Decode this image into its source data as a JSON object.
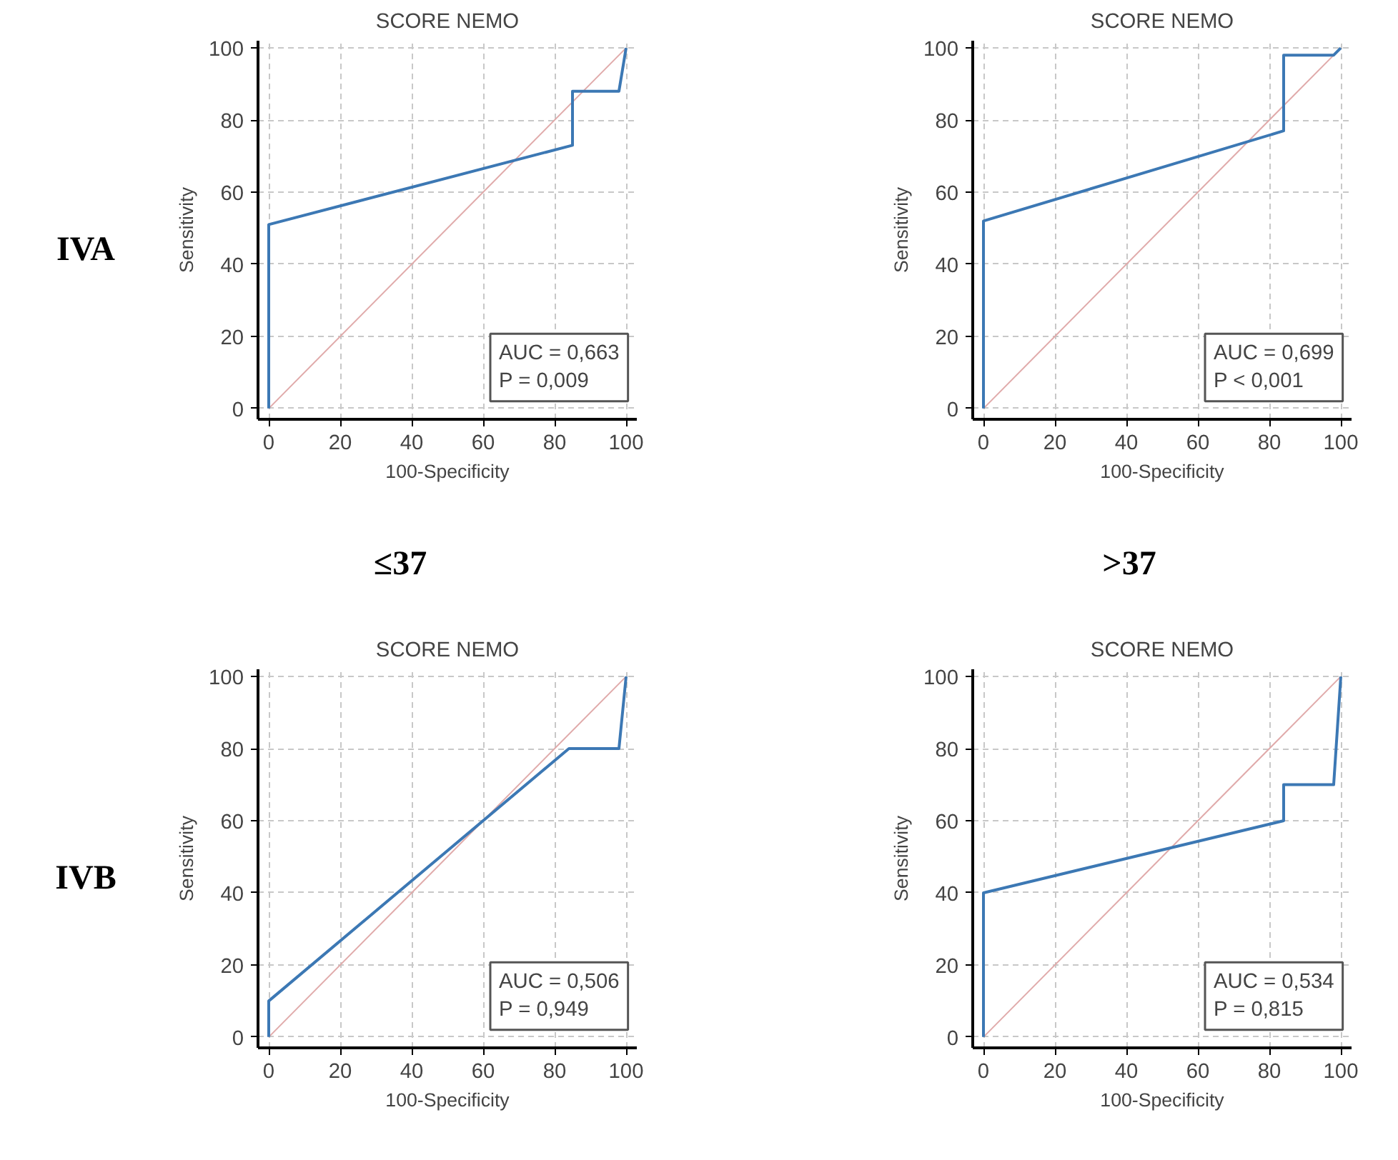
{
  "chart_data": [
    {
      "type": "line",
      "title": "SCORE NEMO",
      "xlabel": "100-Specificity",
      "ylabel": "Sensitivity",
      "xlim": [
        -3,
        103
      ],
      "ylim": [
        -3,
        102
      ],
      "xticks": [
        0,
        20,
        40,
        60,
        80,
        100
      ],
      "yticks": [
        0,
        20,
        40,
        60,
        80,
        100
      ],
      "grid": true,
      "series": [
        {
          "x": [
            0,
            100
          ],
          "values": [
            0,
            100
          ],
          "color": "#e0aaaa"
        },
        {
          "x": [
            0,
            0,
            85,
            85,
            98,
            100
          ],
          "values": [
            0,
            51,
            73,
            88,
            88,
            100
          ],
          "color": "#3c78b4"
        }
      ],
      "annotations": [
        "AUC = 0,663",
        "P = 0,009"
      ]
    },
    {
      "type": "line",
      "title": "SCORE NEMO",
      "xlabel": "100-Specificity",
      "ylabel": "Sensitivity",
      "xlim": [
        -3,
        103
      ],
      "ylim": [
        -3,
        102
      ],
      "xticks": [
        0,
        20,
        40,
        60,
        80,
        100
      ],
      "yticks": [
        0,
        20,
        40,
        60,
        80,
        100
      ],
      "grid": true,
      "series": [
        {
          "x": [
            0,
            100
          ],
          "values": [
            0,
            100
          ],
          "color": "#e0aaaa"
        },
        {
          "x": [
            0,
            0,
            84,
            84,
            98,
            100
          ],
          "values": [
            0,
            52,
            77,
            98,
            98,
            100
          ],
          "color": "#3c78b4"
        }
      ],
      "annotations": [
        "AUC = 0,699",
        "P < 0,001"
      ]
    },
    {
      "type": "line",
      "title": "SCORE NEMO",
      "xlabel": "100-Specificity",
      "ylabel": "Sensitivity",
      "xlim": [
        -3,
        103
      ],
      "ylim": [
        -3,
        102
      ],
      "xticks": [
        0,
        20,
        40,
        60,
        80,
        100
      ],
      "yticks": [
        0,
        20,
        40,
        60,
        80,
        100
      ],
      "grid": true,
      "series": [
        {
          "x": [
            0,
            100
          ],
          "values": [
            0,
            100
          ],
          "color": "#e0aaaa"
        },
        {
          "x": [
            0,
            0,
            84,
            98,
            100
          ],
          "values": [
            0,
            10,
            80,
            80,
            100
          ],
          "color": "#3c78b4"
        }
      ],
      "annotations": [
        "AUC = 0,506",
        "P = 0,949"
      ]
    },
    {
      "type": "line",
      "title": "SCORE NEMO",
      "xlabel": "100-Specificity",
      "ylabel": "Sensitivity",
      "xlim": [
        -3,
        103
      ],
      "ylim": [
        -3,
        102
      ],
      "xticks": [
        0,
        20,
        40,
        60,
        80,
        100
      ],
      "yticks": [
        0,
        20,
        40,
        60,
        80,
        100
      ],
      "grid": true,
      "series": [
        {
          "x": [
            0,
            100
          ],
          "values": [
            0,
            100
          ],
          "color": "#e0aaaa"
        },
        {
          "x": [
            0,
            0,
            84,
            84,
            98,
            100
          ],
          "values": [
            0,
            40,
            60,
            70,
            70,
            100
          ],
          "color": "#3c78b4"
        }
      ],
      "annotations": [
        "AUC = 0,534",
        "P = 0,815"
      ]
    },
    {
      "type": "other",
      "annotations": [
        "IVA",
        "IVB",
        "≤37",
        ">37"
      ]
    }
  ]
}
